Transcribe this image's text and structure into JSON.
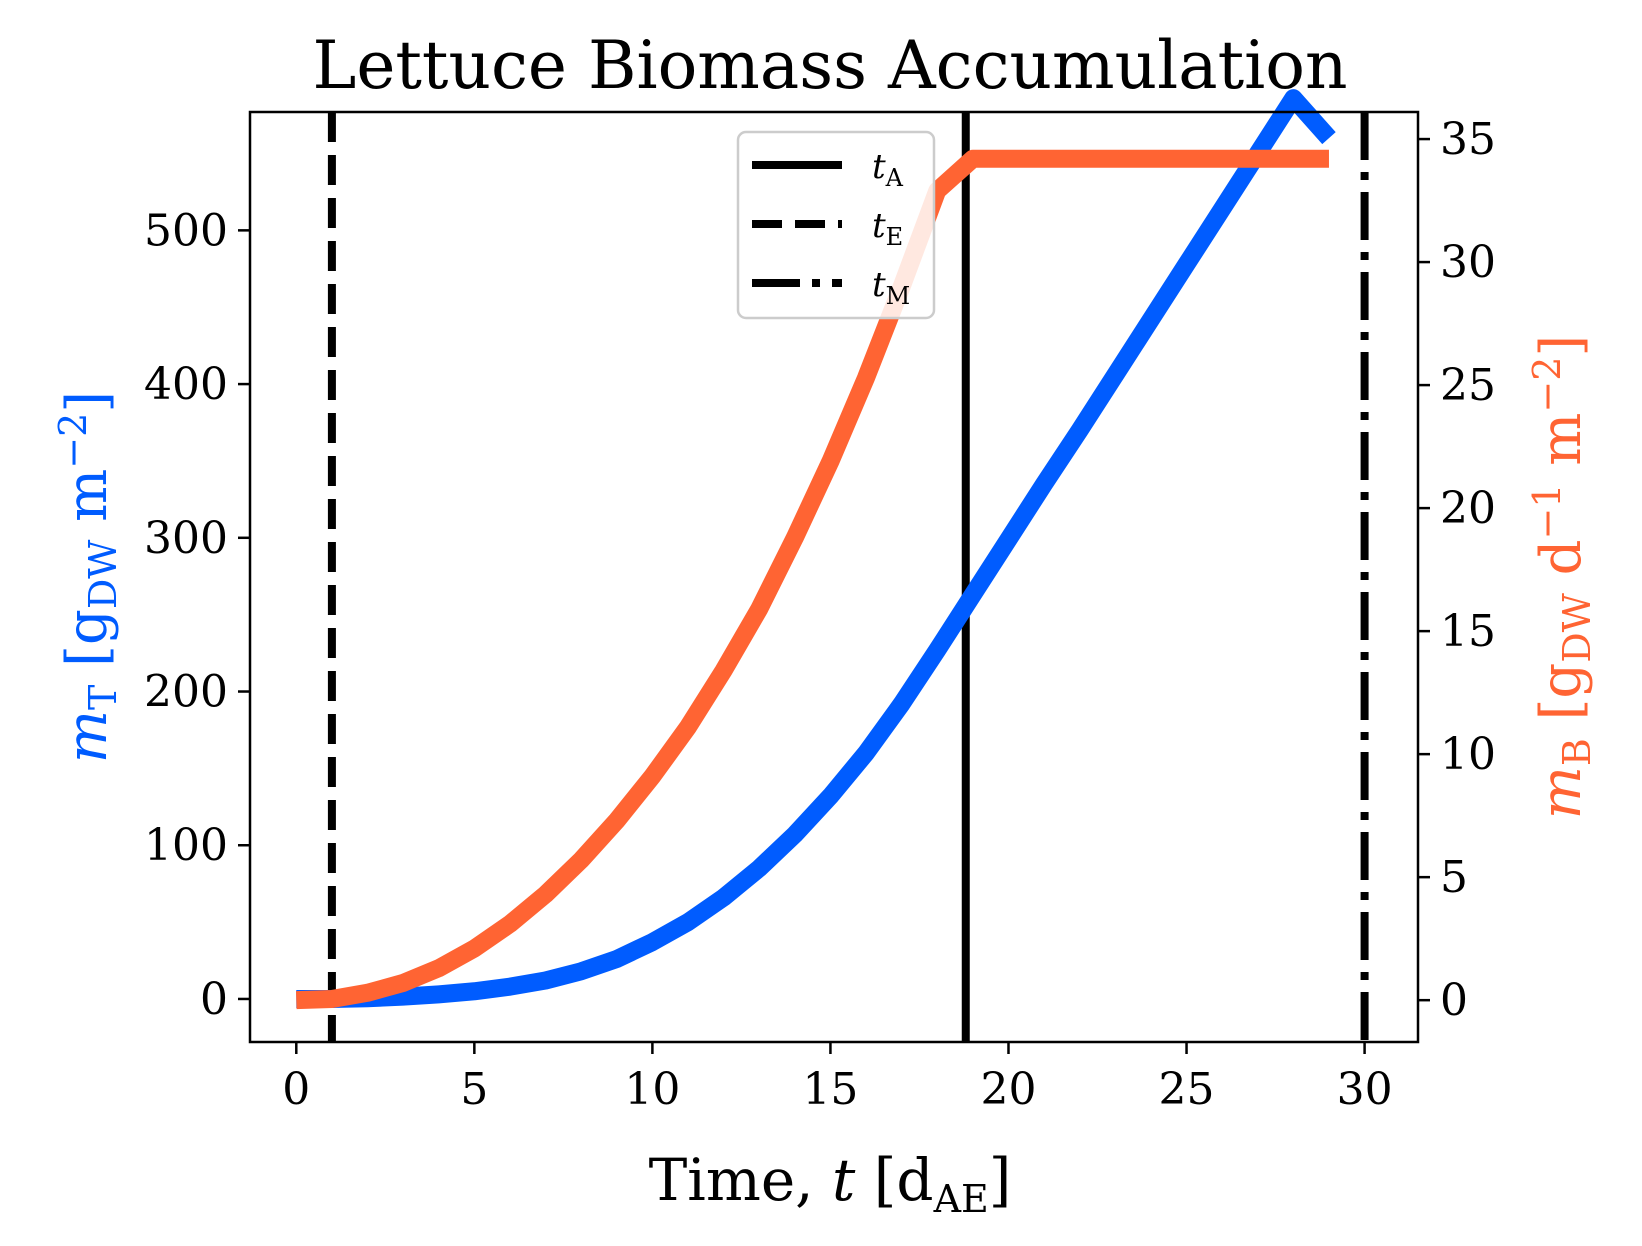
{
  "chart_data": {
    "type": "line",
    "title": "Lettuce Biomass Accumulation",
    "xlabel": {
      "main": "Time, ",
      "var": "t",
      "unit_open": " [d",
      "unit_sub": "AE",
      "unit_close": "]"
    },
    "ylabel_left": {
      "sym": "m",
      "sub": "T",
      "unit": " [g",
      "unit_sub": "DW",
      "unit_rest": " m",
      "unit_sup": "−2",
      "unit_close": "]"
    },
    "ylabel_right": {
      "sym": "m",
      "sub": "B",
      "unit": " [g",
      "unit_sub": "DW",
      "unit_mid": " d",
      "unit_sup1": "−1",
      "unit_rest": " m",
      "unit_sup": "−2",
      "unit_close": "]"
    },
    "xlim": [
      -1.3,
      31.5
    ],
    "ylim_left": [
      -28,
      577
    ],
    "ylim_right": [
      -1.7,
      36.1
    ],
    "xticks": [
      0,
      5,
      10,
      15,
      20,
      25,
      30
    ],
    "yticks_left": [
      0,
      100,
      200,
      300,
      400,
      500
    ],
    "yticks_right": [
      0,
      5,
      10,
      15,
      20,
      25,
      30,
      35
    ],
    "grid": false,
    "legend_position": "top-right",
    "series": [
      {
        "axis": "left",
        "color": "#005cff",
        "x": [
          0,
          1,
          2,
          3,
          4,
          5,
          6,
          7,
          8,
          9,
          10,
          11,
          12,
          13,
          14,
          15,
          16,
          17,
          18,
          19,
          20,
          21,
          22,
          23,
          24,
          25,
          26,
          27,
          28,
          29
        ],
        "values": [
          0,
          0,
          0.5,
          1.5,
          3,
          5,
          8,
          12,
          18,
          26,
          37,
          50,
          66,
          85,
          107,
          132,
          160,
          192,
          227,
          263,
          299,
          335,
          370,
          406,
          442,
          478,
          514,
          550,
          586,
          560
        ]
      },
      {
        "axis": "right",
        "color": "#ff6433",
        "x": [
          0,
          1,
          2,
          3,
          4,
          5,
          6,
          7,
          8,
          9,
          10,
          11,
          12,
          13,
          14,
          15,
          16,
          17,
          18,
          19,
          20,
          21,
          22,
          23,
          24,
          25,
          26,
          27,
          28,
          29
        ],
        "values": [
          0,
          0.05,
          0.3,
          0.7,
          1.3,
          2.1,
          3.1,
          4.3,
          5.7,
          7.3,
          9.1,
          11.1,
          13.4,
          15.9,
          18.8,
          21.9,
          25.3,
          29.0,
          32.9,
          34.2,
          34.2,
          34.2,
          34.2,
          34.2,
          34.2,
          34.2,
          34.2,
          34.2,
          34.2,
          34.2
        ]
      }
    ],
    "vlines": [
      {
        "label": "t",
        "label_sub": "A",
        "x": 18.8,
        "style": "solid"
      },
      {
        "label": "t",
        "label_sub": "E",
        "x": 1.0,
        "style": "dashed"
      },
      {
        "label": "t",
        "label_sub": "M",
        "x": 30.0,
        "style": "dashdot"
      }
    ]
  }
}
